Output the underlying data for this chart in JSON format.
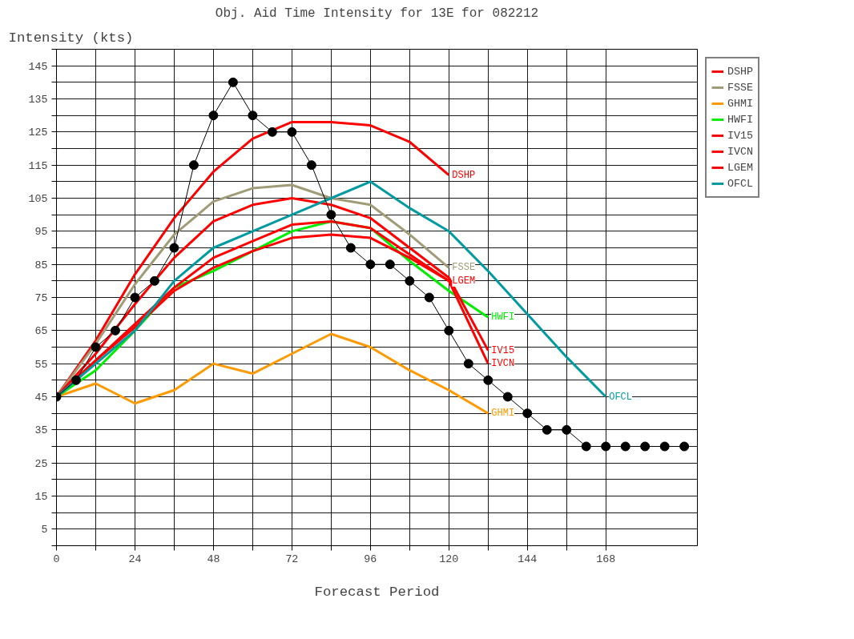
{
  "chart_data": {
    "type": "line",
    "title": "Obj. Aid Time Intensity for 13E for 082212",
    "xlabel": "Forecast Period",
    "ylabel": "Intensity (kts)",
    "xlim": [
      0,
      196
    ],
    "ylim": [
      0,
      150
    ],
    "xticks": [
      0,
      {
        "value": 12,
        "label": null
      },
      24,
      {
        "value": 36,
        "label": null
      },
      48,
      {
        "value": 60,
        "label": null
      },
      72,
      {
        "value": 84,
        "label": null
      },
      96,
      {
        "value": 108,
        "label": null
      },
      120,
      {
        "value": 132,
        "label": null
      },
      144,
      {
        "value": 156,
        "label": null
      },
      168
    ],
    "yticks": [
      {
        "value": 0,
        "label": null
      },
      5,
      {
        "value": 10,
        "label": null
      },
      15,
      {
        "value": 20,
        "label": null
      },
      25,
      {
        "value": 30,
        "label": null
      },
      35,
      {
        "value": 40,
        "label": null
      },
      45,
      {
        "value": 50,
        "label": null
      },
      55,
      {
        "value": 60,
        "label": null
      },
      65,
      {
        "value": 70,
        "label": null
      },
      75,
      {
        "value": 80,
        "label": null
      },
      85,
      {
        "value": 90,
        "label": null
      },
      95,
      {
        "value": 100,
        "label": null
      },
      105,
      {
        "value": 110,
        "label": null
      },
      115,
      {
        "value": 120,
        "label": null
      },
      125,
      {
        "value": 130,
        "label": null
      },
      135,
      {
        "value": 140,
        "label": null
      },
      145,
      {
        "value": 150,
        "label": null
      }
    ],
    "grid": true,
    "legend": "top right",
    "line_style": "solid",
    "series": [
      {
        "name": "DSHP",
        "color": "#ff0000",
        "x": [
          0,
          12,
          24,
          36,
          48,
          60,
          72,
          84,
          96,
          108,
          120
        ],
        "values": [
          45,
          62,
          82,
          99,
          113,
          123,
          128,
          128,
          127,
          122,
          112
        ]
      },
      {
        "name": "FSSE",
        "color": "#a09c78",
        "x": [
          0,
          12,
          24,
          36,
          48,
          60,
          72,
          84,
          96,
          108,
          120
        ],
        "values": [
          45,
          61,
          79,
          94,
          104,
          108,
          109,
          105,
          103,
          94,
          84
        ]
      },
      {
        "name": "GHMI",
        "color": "#ff9900",
        "x": [
          0,
          12,
          24,
          36,
          48,
          60,
          72,
          84,
          96,
          108,
          120,
          132
        ],
        "values": [
          45,
          49,
          43,
          47,
          55,
          52,
          58,
          64,
          60,
          53,
          47,
          40
        ]
      },
      {
        "name": "HWFI",
        "color": "#00ee00",
        "x": [
          0,
          12,
          24,
          36,
          48,
          60,
          72,
          84,
          96,
          108,
          120,
          132
        ],
        "values": [
          45,
          53,
          65,
          78,
          83,
          89,
          95,
          98,
          96,
          86,
          77,
          69
        ]
      },
      {
        "name": "IV15",
        "color": "#ff0000",
        "x": [
          0,
          12,
          24,
          36,
          48,
          60,
          72,
          84,
          96,
          108,
          120,
          132
        ],
        "values": [
          45,
          58,
          73,
          87,
          98,
          103,
          105,
          103,
          99,
          90,
          81,
          59
        ]
      },
      {
        "name": "IVCN",
        "color": "#ff0000",
        "x": [
          0,
          12,
          24,
          36,
          48,
          60,
          72,
          84,
          96,
          108,
          120,
          132
        ],
        "values": [
          45,
          56,
          67,
          78,
          87,
          92,
          97,
          98,
          96,
          88,
          80,
          55
        ]
      },
      {
        "name": "LGEM",
        "color": "#ff0000",
        "x": [
          0,
          12,
          24,
          36,
          48,
          60,
          72,
          84,
          96,
          108,
          120
        ],
        "values": [
          45,
          56,
          66,
          77,
          84,
          89,
          93,
          94,
          93,
          87,
          80
        ]
      },
      {
        "name": "OFCL",
        "color": "#009aa0",
        "x": [
          0,
          12,
          24,
          36,
          48,
          60,
          72,
          84,
          96,
          108,
          120,
          132,
          144,
          156,
          168
        ],
        "values": [
          45,
          55,
          65,
          80,
          90,
          95,
          100,
          105,
          110,
          102,
          95,
          83,
          70,
          57,
          45
        ]
      },
      {
        "color": "#000000",
        "marker": "circle",
        "x": [
          0,
          6,
          12,
          18,
          24,
          30,
          36,
          42,
          48,
          54,
          60,
          66,
          72,
          78,
          84,
          90,
          96,
          102,
          108,
          114,
          120,
          126,
          132,
          138,
          144,
          150,
          156,
          162,
          168,
          174,
          180,
          186,
          192
        ],
        "values": [
          45,
          50,
          60,
          65,
          75,
          80,
          90,
          115,
          130,
          140,
          130,
          125,
          125,
          115,
          100,
          90,
          85,
          85,
          80,
          75,
          65,
          55,
          50,
          45,
          40,
          35,
          35,
          30,
          30,
          30,
          30,
          30,
          30
        ]
      }
    ]
  }
}
